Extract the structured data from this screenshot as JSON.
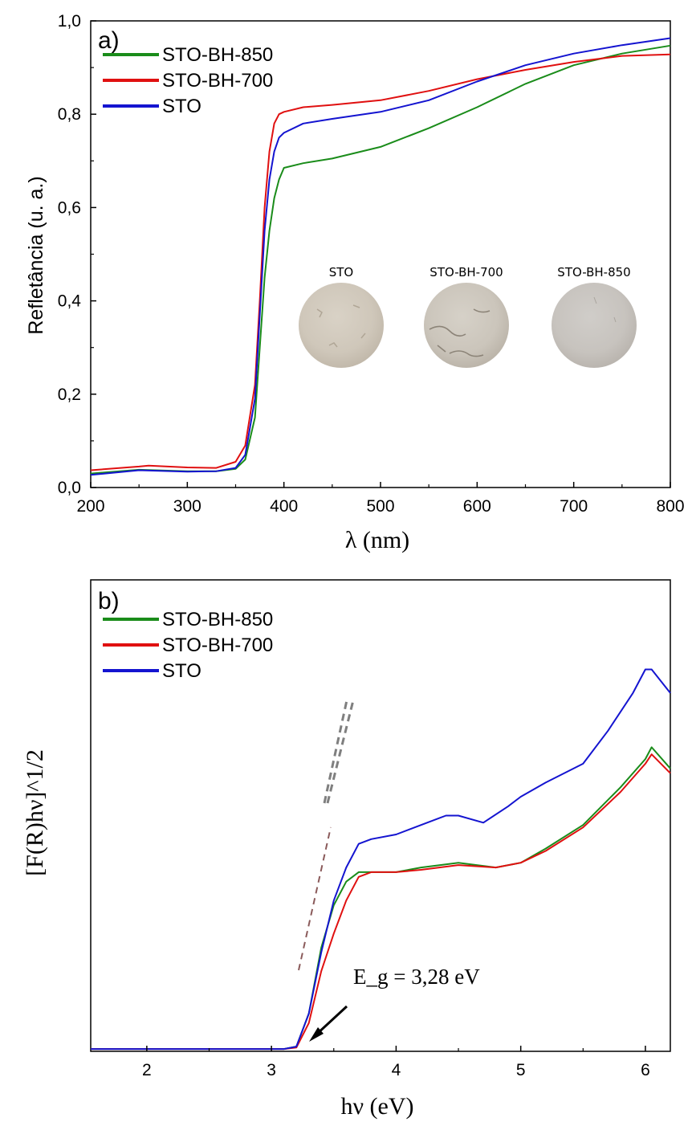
{
  "chart_data": [
    {
      "type": "line",
      "panel_label": "a)",
      "xlabel": "λ (nm)",
      "ylabel": "Refletância (u. a.)",
      "xlim": [
        200,
        800
      ],
      "ylim": [
        0,
        1.0
      ],
      "xticks": [
        200,
        300,
        400,
        500,
        600,
        700,
        800
      ],
      "xtick_labels": [
        "200",
        "300",
        "400",
        "500",
        "600",
        "700",
        "800"
      ],
      "yticks": [
        0,
        0.2,
        0.4,
        0.6,
        0.8,
        1.0
      ],
      "ytick_labels": [
        "0,0",
        "0,2",
        "0,4",
        "0,6",
        "0,8",
        "1,0"
      ],
      "legend_position": "top-left",
      "series": [
        {
          "name": "STO-BH-850",
          "color": "#1a8c1a",
          "x": [
            200,
            250,
            300,
            330,
            350,
            360,
            370,
            375,
            380,
            385,
            390,
            395,
            400,
            420,
            450,
            500,
            550,
            600,
            650,
            700,
            750,
            800
          ],
          "y": [
            0.03,
            0.038,
            0.035,
            0.035,
            0.04,
            0.06,
            0.15,
            0.3,
            0.45,
            0.55,
            0.62,
            0.66,
            0.685,
            0.695,
            0.705,
            0.73,
            0.77,
            0.815,
            0.865,
            0.905,
            0.93,
            0.947
          ]
        },
        {
          "name": "STO-BH-700",
          "color": "#e01010",
          "x": [
            200,
            250,
            260,
            300,
            330,
            350,
            360,
            370,
            375,
            380,
            385,
            390,
            395,
            400,
            420,
            450,
            500,
            550,
            600,
            650,
            700,
            750,
            800
          ],
          "y": [
            0.037,
            0.045,
            0.047,
            0.043,
            0.042,
            0.055,
            0.09,
            0.22,
            0.4,
            0.6,
            0.72,
            0.78,
            0.8,
            0.805,
            0.815,
            0.82,
            0.83,
            0.85,
            0.875,
            0.895,
            0.912,
            0.925,
            0.928
          ]
        },
        {
          "name": "STO",
          "color": "#1414d0",
          "x": [
            200,
            250,
            300,
            330,
            350,
            360,
            370,
            375,
            380,
            385,
            390,
            395,
            400,
            420,
            450,
            500,
            550,
            600,
            650,
            700,
            750,
            800
          ],
          "y": [
            0.027,
            0.037,
            0.034,
            0.035,
            0.042,
            0.07,
            0.19,
            0.37,
            0.55,
            0.66,
            0.72,
            0.75,
            0.76,
            0.78,
            0.79,
            0.805,
            0.83,
            0.87,
            0.905,
            0.93,
            0.948,
            0.963
          ]
        }
      ],
      "inset_samples": [
        "STO",
        "STO-BH-700",
        "STO-BH-850"
      ]
    },
    {
      "type": "line",
      "panel_label": "b)",
      "xlabel": "hν (eV)",
      "ylabel": "[F(R)hν]^1/2",
      "xlim": [
        1.55,
        6.2
      ],
      "ylim": [
        0,
        10
      ],
      "xticks": [
        2,
        3,
        4,
        5,
        6
      ],
      "xtick_labels": [
        "2",
        "3",
        "4",
        "5",
        "6"
      ],
      "legend_position": "top-left",
      "annotation": "E_g = 3,28 eV",
      "series": [
        {
          "name": "STO-BH-850",
          "color": "#1a8c1a",
          "x": [
            1.55,
            3.1,
            3.2,
            3.3,
            3.4,
            3.5,
            3.6,
            3.7,
            3.8,
            4.0,
            4.2,
            4.5,
            4.8,
            5.0,
            5.2,
            5.5,
            5.8,
            6.0,
            6.05,
            6.2
          ],
          "y": [
            0.05,
            0.05,
            0.1,
            0.8,
            2.2,
            3.1,
            3.6,
            3.8,
            3.8,
            3.8,
            3.9,
            4.0,
            3.9,
            4.0,
            4.3,
            4.8,
            5.6,
            6.2,
            6.45,
            6.0
          ]
        },
        {
          "name": "STO-BH-700",
          "color": "#e01010",
          "x": [
            1.55,
            3.1,
            3.2,
            3.3,
            3.4,
            3.5,
            3.6,
            3.7,
            3.8,
            4.0,
            4.2,
            4.5,
            4.8,
            5.0,
            5.2,
            5.5,
            5.8,
            6.0,
            6.05,
            6.2
          ],
          "y": [
            0.05,
            0.05,
            0.08,
            0.6,
            1.7,
            2.5,
            3.2,
            3.7,
            3.8,
            3.8,
            3.85,
            3.95,
            3.9,
            4.0,
            4.25,
            4.75,
            5.5,
            6.1,
            6.3,
            5.9
          ]
        },
        {
          "name": "STO",
          "color": "#1414d0",
          "x": [
            1.55,
            3.1,
            3.2,
            3.3,
            3.4,
            3.5,
            3.6,
            3.7,
            3.8,
            4.0,
            4.2,
            4.4,
            4.5,
            4.7,
            4.9,
            5.0,
            5.2,
            5.5,
            5.7,
            5.9,
            6.0,
            6.05,
            6.2
          ],
          "y": [
            0.05,
            0.05,
            0.1,
            0.8,
            2.1,
            3.2,
            3.9,
            4.4,
            4.5,
            4.6,
            4.8,
            5.0,
            5.0,
            4.85,
            5.2,
            5.4,
            5.7,
            6.1,
            6.8,
            7.6,
            8.1,
            8.1,
            7.6
          ]
        }
      ]
    }
  ]
}
